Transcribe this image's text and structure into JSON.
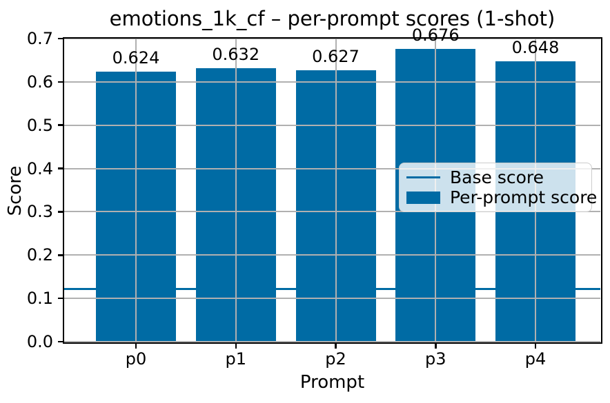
{
  "chart_data": {
    "type": "bar",
    "title": "emotions_1k_cf – per-prompt scores (1-shot)",
    "xlabel": "Prompt",
    "ylabel": "Score",
    "categories": [
      "p0",
      "p1",
      "p2",
      "p3",
      "p4"
    ],
    "values": [
      0.624,
      0.632,
      0.627,
      0.676,
      0.648
    ],
    "bar_labels": [
      "0.624",
      "0.632",
      "0.627",
      "0.676",
      "0.648"
    ],
    "base_score": 0.122,
    "ylim": [
      0.0,
      0.7
    ],
    "yticks": [
      0.0,
      0.1,
      0.2,
      0.3,
      0.4,
      0.5,
      0.6,
      0.7
    ],
    "grid": true,
    "legend": {
      "position": "center right",
      "entries": [
        {
          "label": "Base score",
          "type": "line"
        },
        {
          "label": "Per-prompt score",
          "type": "patch"
        }
      ]
    },
    "colors": {
      "bar": "#006ba4",
      "base_line": "#006ba4",
      "grid": "#b0b0b0",
      "spine": "#000000",
      "text": "#000000",
      "legend_border": "#cccccc",
      "legend_bg": "rgba(255,255,255,0.8)"
    }
  }
}
